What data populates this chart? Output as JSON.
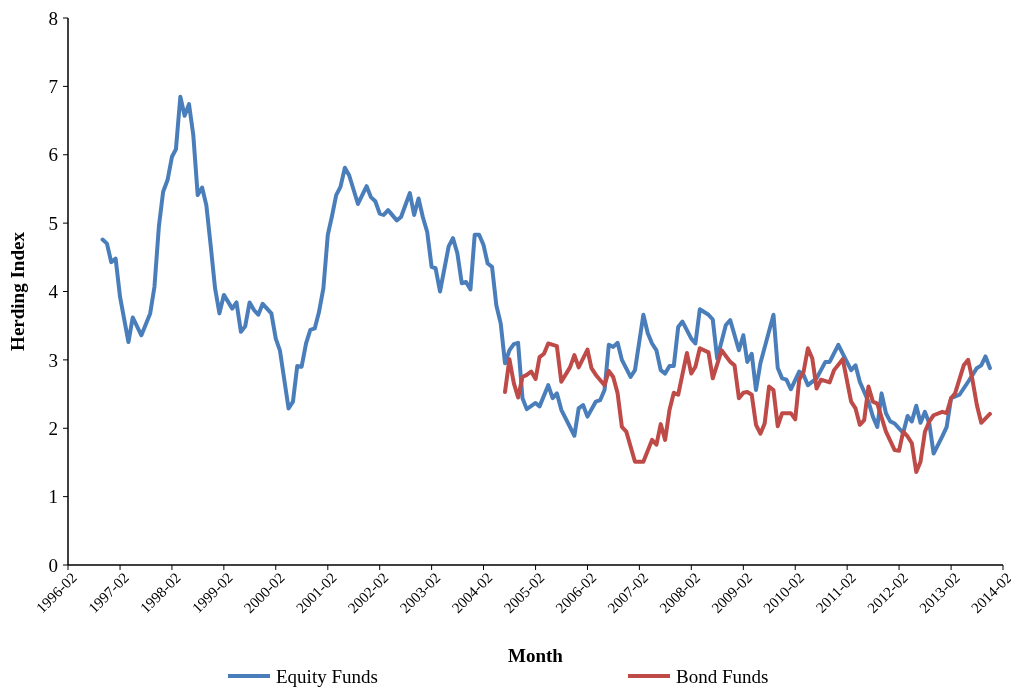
{
  "chart_data": {
    "type": "line",
    "xlabel": "Month",
    "ylabel": "Herding Index",
    "xlim": [
      "1996-02",
      "2014-02"
    ],
    "xticks": [
      "1996-02",
      "1997-02",
      "1998-02",
      "1999-02",
      "2000-02",
      "2001-02",
      "2002-02",
      "2003-02",
      "2004-02",
      "2005-02",
      "2006-02",
      "2007-02",
      "2008-02",
      "2009-02",
      "2010-02",
      "2011-02",
      "2012-02",
      "2013-02",
      "2014-02"
    ],
    "ylim": [
      0,
      8
    ],
    "yticks": [
      0,
      1,
      2,
      3,
      4,
      5,
      6,
      7,
      8
    ],
    "grid": false,
    "legend": "bottom",
    "marker": "none",
    "line_style": "solid",
    "series": [
      {
        "name": "Equity Funds",
        "color": "#4a7ebb",
        "x": [
          "1996-10",
          "1996-11",
          "1996-12",
          "1997-01",
          "1997-02",
          "1997-04",
          "1997-05",
          "1997-07",
          "1997-09",
          "1997-10",
          "1997-11",
          "1997-12",
          "1998-01",
          "1998-02",
          "1998-03",
          "1998-04",
          "1998-05",
          "1998-06",
          "1998-07",
          "1998-08",
          "1998-09",
          "1998-10",
          "1998-11",
          "1998-12",
          "1999-01",
          "1999-02",
          "1999-04",
          "1999-05",
          "1999-06",
          "1999-07",
          "1999-08",
          "1999-09",
          "1999-10",
          "1999-11",
          "2000-01",
          "2000-02",
          "2000-03",
          "2000-04",
          "2000-05",
          "2000-06",
          "2000-07",
          "2000-08",
          "2000-09",
          "2000-10",
          "2000-11",
          "2000-12",
          "2001-01",
          "2001-02",
          "2001-03",
          "2001-04",
          "2001-05",
          "2001-06",
          "2001-07",
          "2001-09",
          "2001-11",
          "2001-12",
          "2002-01",
          "2002-02",
          "2002-03",
          "2002-04",
          "2002-06",
          "2002-07",
          "2002-09",
          "2002-10",
          "2002-11",
          "2002-12",
          "2003-01",
          "2003-02",
          "2003-03",
          "2003-04",
          "2003-06",
          "2003-07",
          "2003-08",
          "2003-09",
          "2003-10",
          "2003-11",
          "2003-12",
          "2004-01",
          "2004-02",
          "2004-03",
          "2004-04",
          "2004-05",
          "2004-06",
          "2004-07",
          "2004-08",
          "2004-09",
          "2004-10",
          "2004-11",
          "2004-12",
          "2005-02",
          "2005-03",
          "2005-05",
          "2005-06",
          "2005-07",
          "2005-08",
          "2005-11",
          "2005-12",
          "2006-01",
          "2006-02",
          "2006-04",
          "2006-05",
          "2006-06",
          "2006-07",
          "2006-08",
          "2006-09",
          "2006-10",
          "2006-12",
          "2007-01",
          "2007-03",
          "2007-04",
          "2007-05",
          "2007-06",
          "2007-07",
          "2007-08",
          "2007-09",
          "2007-10",
          "2007-11",
          "2007-12",
          "2008-02",
          "2008-03",
          "2008-04",
          "2008-06",
          "2008-07",
          "2008-08",
          "2008-10",
          "2008-11",
          "2009-01",
          "2009-02",
          "2009-03",
          "2009-04",
          "2009-05",
          "2009-06",
          "2009-09",
          "2009-10",
          "2009-11",
          "2009-12",
          "2010-01",
          "2010-03",
          "2010-04",
          "2010-05",
          "2010-07",
          "2010-09",
          "2010-10",
          "2010-12",
          "2011-01",
          "2011-03",
          "2011-04",
          "2011-05",
          "2011-07",
          "2011-08",
          "2011-09",
          "2011-10",
          "2011-11",
          "2011-12",
          "2012-01",
          "2012-03",
          "2012-04",
          "2012-05",
          "2012-06",
          "2012-07",
          "2012-08",
          "2012-09",
          "2012-10",
          "2012-12",
          "2013-01",
          "2013-02",
          "2013-04",
          "2013-06",
          "2013-08",
          "2013-09",
          "2013-10",
          "2013-11"
        ],
        "values": [
          4.76,
          4.7,
          4.43,
          4.48,
          3.92,
          3.26,
          3.62,
          3.36,
          3.68,
          4.07,
          4.95,
          5.46,
          5.63,
          5.97,
          6.08,
          6.85,
          6.57,
          6.74,
          6.29,
          5.41,
          5.52,
          5.26,
          4.66,
          4.05,
          3.68,
          3.95,
          3.75,
          3.84,
          3.41,
          3.49,
          3.84,
          3.73,
          3.66,
          3.82,
          3.68,
          3.31,
          3.14,
          2.71,
          2.29,
          2.39,
          2.91,
          2.9,
          3.24,
          3.44,
          3.46,
          3.7,
          4.05,
          4.83,
          5.09,
          5.41,
          5.53,
          5.81,
          5.7,
          5.28,
          5.54,
          5.38,
          5.32,
          5.14,
          5.12,
          5.19,
          5.04,
          5.09,
          5.44,
          5.12,
          5.36,
          5.09,
          4.87,
          4.36,
          4.34,
          4.0,
          4.66,
          4.78,
          4.56,
          4.12,
          4.14,
          4.03,
          4.83,
          4.83,
          4.68,
          4.41,
          4.36,
          3.8,
          3.53,
          2.95,
          3.14,
          3.23,
          3.25,
          2.44,
          2.28,
          2.37,
          2.32,
          2.63,
          2.44,
          2.51,
          2.27,
          1.89,
          2.29,
          2.34,
          2.17,
          2.39,
          2.41,
          2.56,
          3.22,
          3.19,
          3.25,
          3.0,
          2.75,
          2.85,
          3.66,
          3.39,
          3.24,
          3.14,
          2.85,
          2.8,
          2.91,
          2.91,
          3.48,
          3.56,
          3.31,
          3.24,
          3.74,
          3.66,
          3.59,
          3.02,
          3.51,
          3.58,
          3.14,
          3.36,
          2.97,
          3.09,
          2.56,
          2.95,
          3.66,
          2.88,
          2.73,
          2.71,
          2.57,
          2.83,
          2.78,
          2.63,
          2.73,
          2.97,
          2.97,
          3.22,
          3.09,
          2.85,
          2.92,
          2.68,
          2.39,
          2.17,
          2.02,
          2.51,
          2.22,
          2.1,
          2.07,
          1.93,
          2.18,
          2.1,
          2.33,
          2.08,
          2.24,
          2.07,
          1.63,
          1.88,
          2.02,
          2.44,
          2.49,
          2.68,
          2.88,
          2.92,
          3.05,
          2.88
        ]
      },
      {
        "name": "Bond Funds",
        "color": "#be4b48",
        "x": [
          "2004-07",
          "2004-08",
          "2004-09",
          "2004-10",
          "2004-11",
          "2004-12",
          "2005-01",
          "2005-02",
          "2005-03",
          "2005-04",
          "2005-05",
          "2005-07",
          "2005-08",
          "2005-10",
          "2005-11",
          "2005-12",
          "2006-02",
          "2006-03",
          "2006-04",
          "2006-06",
          "2006-07",
          "2006-08",
          "2006-09",
          "2006-10",
          "2006-11",
          "2007-01",
          "2007-03",
          "2007-05",
          "2007-06",
          "2007-07",
          "2007-08",
          "2007-09",
          "2007-10",
          "2007-11",
          "2008-01",
          "2008-02",
          "2008-03",
          "2008-04",
          "2008-06",
          "2008-07",
          "2008-09",
          "2008-11",
          "2008-12",
          "2009-01",
          "2009-02",
          "2009-03",
          "2009-04",
          "2009-05",
          "2009-06",
          "2009-07",
          "2009-08",
          "2009-09",
          "2009-10",
          "2009-11",
          "2010-01",
          "2010-02",
          "2010-03",
          "2010-04",
          "2010-05",
          "2010-06",
          "2010-07",
          "2010-08",
          "2010-10",
          "2010-11",
          "2011-01",
          "2011-03",
          "2011-04",
          "2011-05",
          "2011-06",
          "2011-07",
          "2011-08",
          "2011-09",
          "2011-11",
          "2012-01",
          "2012-02",
          "2012-03",
          "2012-04",
          "2012-05",
          "2012-06",
          "2012-07",
          "2012-08",
          "2012-09",
          "2012-10",
          "2012-12",
          "2013-01",
          "2013-02",
          "2013-03",
          "2013-05",
          "2013-06",
          "2013-07",
          "2013-08",
          "2013-09",
          "2013-11"
        ],
        "values": [
          2.53,
          3.01,
          2.66,
          2.45,
          2.75,
          2.78,
          2.83,
          2.72,
          3.04,
          3.09,
          3.24,
          3.2,
          2.68,
          2.89,
          3.07,
          2.89,
          3.15,
          2.88,
          2.78,
          2.63,
          2.84,
          2.75,
          2.51,
          2.02,
          1.95,
          1.51,
          1.51,
          1.83,
          1.76,
          2.06,
          1.83,
          2.27,
          2.52,
          2.49,
          3.1,
          2.8,
          2.9,
          3.17,
          3.11,
          2.73,
          3.14,
          2.97,
          2.92,
          2.44,
          2.52,
          2.53,
          2.49,
          2.05,
          1.92,
          2.07,
          2.61,
          2.56,
          2.03,
          2.22,
          2.22,
          2.13,
          2.71,
          2.83,
          3.17,
          3.02,
          2.58,
          2.71,
          2.67,
          2.85,
          3.01,
          2.39,
          2.29,
          2.05,
          2.12,
          2.61,
          2.39,
          2.36,
          1.95,
          1.68,
          1.67,
          1.95,
          1.88,
          1.78,
          1.36,
          1.51,
          1.95,
          2.1,
          2.19,
          2.24,
          2.22,
          2.44,
          2.51,
          2.92,
          3.0,
          2.71,
          2.34,
          2.08,
          2.21
        ]
      }
    ]
  }
}
